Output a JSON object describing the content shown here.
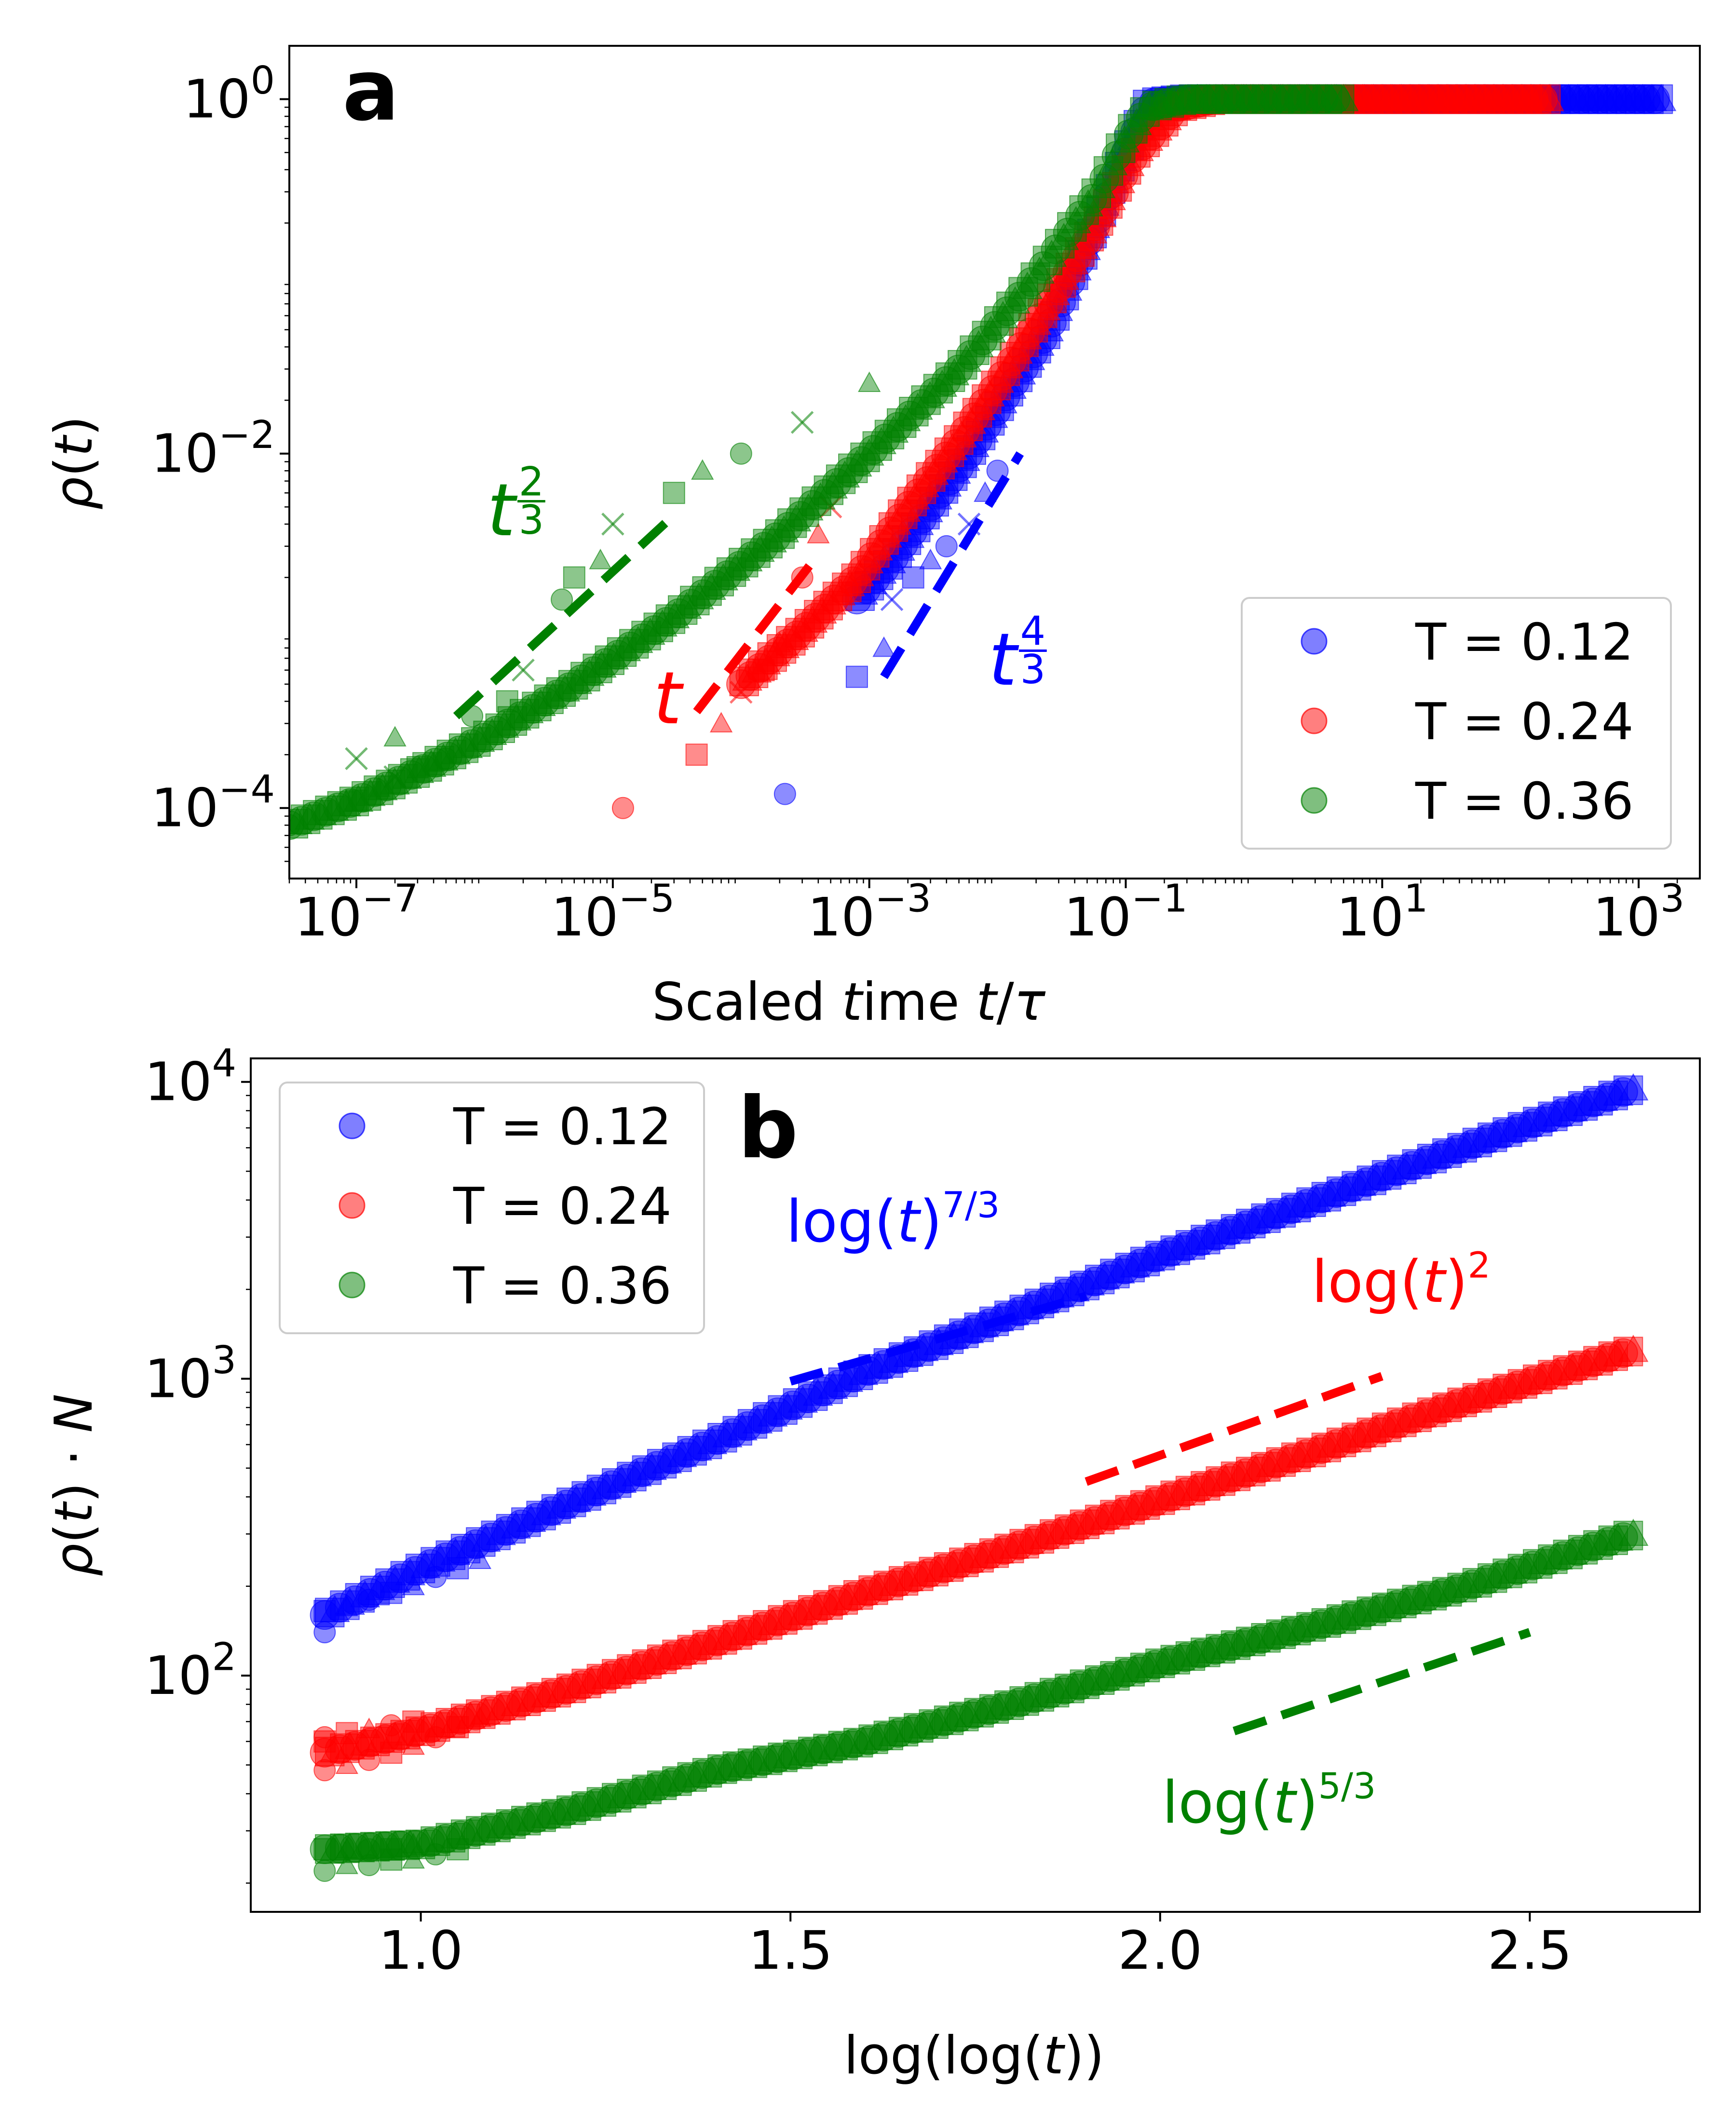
{
  "chart_data": [
    {
      "panel": "a",
      "type": "scatter",
      "x_log": true,
      "y_log": true,
      "xlabel": "Scaled time t/τ",
      "ylabel": "ρ(t)",
      "xlim": [
        3e-08,
        3000
      ],
      "ylim": [
        4e-05,
        2
      ],
      "x_ticks": [
        {
          "value": 1e-07,
          "base": "10",
          "exp": "−7"
        },
        {
          "value": 1e-05,
          "base": "10",
          "exp": "−5"
        },
        {
          "value": 0.001,
          "base": "10",
          "exp": "−3"
        },
        {
          "value": 0.1,
          "base": "10",
          "exp": "−1"
        },
        {
          "value": 10,
          "base": "10",
          "exp": "1"
        },
        {
          "value": 1000,
          "base": "10",
          "exp": "3"
        }
      ],
      "y_ticks": [
        {
          "value": 0.0001,
          "base": "10",
          "exp": "−4"
        },
        {
          "value": 0.01,
          "base": "10",
          "exp": "−2"
        },
        {
          "value": 1,
          "base": "10",
          "exp": "0"
        }
      ],
      "legend": {
        "position": "bottom-right",
        "entries": [
          "T = 0.12",
          "T = 0.24",
          "T = 0.36"
        ]
      },
      "series": [
        {
          "name": "T = 0.12",
          "color": "#0000ff",
          "band": [
            [
              0.0008,
              0.0015
            ],
            [
              0.0015,
              0.0025
            ],
            [
              0.003,
              0.005
            ],
            [
              0.006,
              0.01
            ],
            [
              0.012,
              0.022
            ],
            [
              0.025,
              0.05
            ],
            [
              0.05,
              0.15
            ],
            [
              0.1,
              0.5
            ],
            [
              0.15,
              0.95
            ],
            [
              0.3,
              1.0
            ],
            [
              3,
              1.0
            ],
            [
              30,
              1.0
            ],
            [
              1500,
              1.0
            ]
          ],
          "points": [
            [
              0.00022,
              0.00012
            ],
            [
              0.0008,
              0.00055
            ],
            [
              0.0013,
              0.0008
            ],
            [
              0.0015,
              0.0015
            ],
            [
              0.0022,
              0.002
            ],
            [
              0.003,
              0.0025
            ],
            [
              0.004,
              0.003
            ],
            [
              0.006,
              0.004
            ],
            [
              0.008,
              0.006
            ],
            [
              0.01,
              0.008
            ]
          ]
        },
        {
          "name": "T = 0.24",
          "color": "#ff0000",
          "band": [
            [
              0.0001,
              0.0005
            ],
            [
              0.0003,
              0.001
            ],
            [
              0.0008,
              0.002
            ],
            [
              0.002,
              0.005
            ],
            [
              0.005,
              0.012
            ],
            [
              0.01,
              0.025
            ],
            [
              0.025,
              0.07
            ],
            [
              0.06,
              0.2
            ],
            [
              0.12,
              0.5
            ],
            [
              0.25,
              0.9
            ],
            [
              0.5,
              1.0
            ],
            [
              10,
              1.0
            ],
            [
              200,
              1.0
            ]
          ],
          "points": [
            [
              1.2e-05,
              0.0001
            ],
            [
              4.5e-05,
              0.0002
            ],
            [
              7e-05,
              0.0003
            ],
            [
              0.0001,
              0.00045
            ],
            [
              0.00015,
              0.0006
            ],
            [
              0.0002,
              0.00085
            ],
            [
              0.0003,
              0.002
            ],
            [
              0.0005,
              0.005
            ],
            [
              0.0004,
              0.0035
            ]
          ]
        },
        {
          "name": "T = 0.36",
          "color": "#008000",
          "band": [
            [
              3e-08,
              8e-05
            ],
            [
              1e-07,
              0.00011
            ],
            [
              3e-07,
              0.00016
            ],
            [
              1e-06,
              0.00025
            ],
            [
              5e-06,
              0.0005
            ],
            [
              3e-05,
              0.0012
            ],
            [
              0.0002,
              0.0035
            ],
            [
              0.001,
              0.01
            ],
            [
              0.005,
              0.03
            ],
            [
              0.02,
              0.1
            ],
            [
              0.06,
              0.3
            ],
            [
              0.1,
              0.6
            ],
            [
              0.15,
              0.9
            ],
            [
              0.3,
              1.0
            ],
            [
              5,
              1.0
            ]
          ],
          "points": [
            [
              3e-08,
              8e-05
            ],
            [
              1e-07,
              0.00011
            ],
            [
              1.5e-07,
              0.00013
            ],
            [
              2e-07,
              0.00015
            ],
            [
              3e-07,
              0.00017
            ],
            [
              4e-07,
              0.00018
            ],
            [
              5e-07,
              0.00019
            ],
            [
              1e-07,
              0.00019
            ],
            [
              2e-07,
              0.00025
            ],
            [
              8e-07,
              0.00033
            ],
            [
              1.5e-06,
              0.0004
            ],
            [
              2e-06,
              0.0006
            ],
            [
              4e-06,
              0.0015
            ],
            [
              5e-06,
              0.002
            ],
            [
              8e-06,
              0.0025
            ],
            [
              1e-05,
              0.004
            ],
            [
              3e-05,
              0.006
            ],
            [
              5e-05,
              0.008
            ],
            [
              0.0001,
              0.01
            ],
            [
              0.0003,
              0.015
            ],
            [
              0.001,
              0.025
            ]
          ]
        }
      ],
      "guides": [
        {
          "label": "t",
          "exp": "2/3",
          "color": "#008000",
          "from": [
            6e-07,
            0.00033
          ],
          "to": [
            3e-05,
            0.0045
          ]
        },
        {
          "label": "t",
          "exp": "",
          "color": "#ff0000",
          "from": [
            4.5e-05,
            0.00035
          ],
          "to": [
            0.0004,
            0.0027
          ]
        },
        {
          "label": "t",
          "exp": "4/3",
          "color": "#0000ff",
          "from": [
            0.0013,
            0.00055
          ],
          "to": [
            0.015,
            0.01
          ]
        }
      ]
    },
    {
      "panel": "b",
      "type": "scatter",
      "x_log": false,
      "y_log": true,
      "xlabel": "log(log(t))",
      "ylabel": "ρ(t) · N",
      "xlim": [
        0.77,
        2.73
      ],
      "ylim": [
        16,
        12000
      ],
      "x_ticks": [
        {
          "value": 1.0,
          "label": "1.0"
        },
        {
          "value": 1.5,
          "label": "1.5"
        },
        {
          "value": 2.0,
          "label": "2.0"
        },
        {
          "value": 2.5,
          "label": "2.5"
        }
      ],
      "y_ticks": [
        {
          "value": 100,
          "base": "10",
          "exp": "2"
        },
        {
          "value": 1000,
          "base": "10",
          "exp": "3"
        },
        {
          "value": 10000,
          "base": "10",
          "exp": "4"
        }
      ],
      "legend": {
        "position": "top-left",
        "entries": [
          "T = 0.12",
          "T = 0.24",
          "T = 0.36"
        ]
      },
      "series": [
        {
          "name": "T = 0.12",
          "color": "#0000ff",
          "band": [
            [
              0.87,
              160
            ],
            [
              1.0,
              230
            ],
            [
              1.2,
              380
            ],
            [
              1.4,
              620
            ],
            [
              1.6,
              1050
            ],
            [
              1.8,
              1650
            ],
            [
              2.0,
              2600
            ],
            [
              2.2,
              3900
            ],
            [
              2.4,
              5900
            ],
            [
              2.64,
              9500
            ]
          ],
          "points": [
            [
              0.87,
              140
            ],
            [
              0.87,
              165
            ],
            [
              0.9,
              170
            ],
            [
              0.93,
              180
            ],
            [
              0.96,
              190
            ],
            [
              0.99,
              200
            ],
            [
              1.02,
              215
            ],
            [
              1.05,
              230
            ],
            [
              1.08,
              245
            ]
          ]
        },
        {
          "name": "T = 0.24",
          "color": "#ff0000",
          "band": [
            [
              0.87,
              55
            ],
            [
              1.0,
              65
            ],
            [
              1.2,
              90
            ],
            [
              1.4,
              130
            ],
            [
              1.6,
              190
            ],
            [
              1.8,
              270
            ],
            [
              2.0,
              390
            ],
            [
              2.2,
              560
            ],
            [
              2.4,
              820
            ],
            [
              2.64,
              1250
            ]
          ],
          "points": [
            [
              0.87,
              48
            ],
            [
              0.87,
              60
            ],
            [
              0.9,
              50
            ],
            [
              0.93,
              52
            ],
            [
              0.96,
              55
            ],
            [
              0.99,
              58
            ],
            [
              1.02,
              62
            ],
            [
              1.05,
              67
            ],
            [
              1.08,
              72
            ],
            [
              0.87,
              62
            ],
            [
              0.9,
              64
            ],
            [
              0.93,
              66
            ],
            [
              0.96,
              68
            ],
            [
              0.99,
              70
            ]
          ]
        },
        {
          "name": "T = 0.36",
          "color": "#008000",
          "band": [
            [
              0.87,
              26
            ],
            [
              1.0,
              27
            ],
            [
              1.2,
              35
            ],
            [
              1.4,
              48
            ],
            [
              1.6,
              60
            ],
            [
              1.8,
              80
            ],
            [
              2.0,
              110
            ],
            [
              2.2,
              145
            ],
            [
              2.4,
              195
            ],
            [
              2.64,
              300
            ]
          ],
          "points": [
            [
              0.87,
              22
            ],
            [
              0.87,
              26
            ],
            [
              0.9,
              23
            ],
            [
              0.93,
              23
            ],
            [
              0.96,
              24
            ],
            [
              0.99,
              24
            ],
            [
              1.02,
              25
            ],
            [
              1.05,
              26
            ],
            [
              0.9,
              26
            ],
            [
              0.93,
              26
            ],
            [
              0.96,
              26
            ],
            [
              0.99,
              27
            ]
          ]
        }
      ],
      "guides": [
        {
          "label": "log(t)",
          "exp": "7/3",
          "color": "#0000ff",
          "from": [
            1.5,
            980
          ],
          "to": [
            1.9,
            1900
          ]
        },
        {
          "label": "log(t)",
          "exp": "2",
          "color": "#ff0000",
          "from": [
            1.9,
            450
          ],
          "to": [
            2.3,
            1020
          ]
        },
        {
          "label": "log(t)",
          "exp": "5/3",
          "color": "#008000",
          "from": [
            2.1,
            65
          ],
          "to": [
            2.5,
            140
          ]
        }
      ]
    }
  ],
  "panels": {
    "a": {
      "letter": "a"
    },
    "b": {
      "letter": "b"
    }
  }
}
